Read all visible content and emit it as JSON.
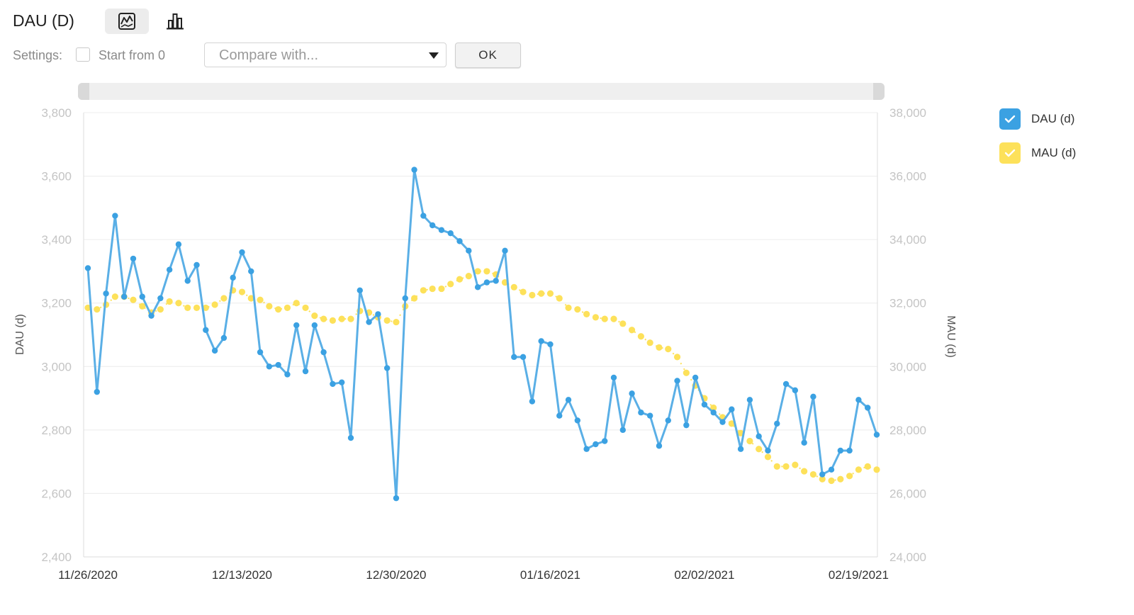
{
  "header": {
    "title": "DAU (D)",
    "line_view_icon": "line-chart-icon",
    "bar_view_icon": "bar-chart-icon"
  },
  "settings": {
    "label": "Settings:",
    "start_from_zero_label": "Start from 0",
    "start_from_zero_checked": false,
    "compare_placeholder": "Compare with...",
    "ok_label": "OK"
  },
  "colors": {
    "dau": "#5aafe6",
    "dau_point": "#3ba1e2",
    "mau": "#fde15a",
    "legend_dau": "#3ba1e2",
    "legend_mau": "#fde15a",
    "grid": "#ececec",
    "tick": "#c4c4c4"
  },
  "legend": [
    {
      "label": "DAU (d)",
      "checked": true
    },
    {
      "label": "MAU (d)",
      "checked": true
    }
  ],
  "chart_data": {
    "type": "line",
    "xlabel": "",
    "ylabel": "DAU (d)",
    "y2label": "MAU (d)",
    "ylim": [
      2400,
      3800
    ],
    "y2lim": [
      24000,
      38000
    ],
    "yticks": [
      "2,400",
      "2,600",
      "2,800",
      "3,000",
      "3,200",
      "3,400",
      "3,600",
      "3,800"
    ],
    "y2ticks": [
      "24,000",
      "26,000",
      "28,000",
      "30,000",
      "32,000",
      "34,000",
      "36,000",
      "38,000"
    ],
    "xtick_labels": [
      "11/26/2020",
      "12/13/2020",
      "12/30/2020",
      "01/16/2021",
      "02/02/2021",
      "02/19/2021"
    ],
    "xtick_index": [
      0,
      17,
      34,
      51,
      68,
      85
    ],
    "grid": true,
    "legend_position": "right",
    "series": [
      {
        "name": "DAU (d)",
        "axis": "left",
        "values": [
          3310,
          2920,
          3230,
          3475,
          3220,
          3340,
          3220,
          3160,
          3215,
          3305,
          3385,
          3270,
          3320,
          3115,
          3050,
          3090,
          3280,
          3360,
          3300,
          3045,
          3000,
          3005,
          2975,
          3130,
          2985,
          3130,
          3045,
          2945,
          2950,
          2775,
          3240,
          3140,
          3165,
          2995,
          2585,
          3215,
          3620,
          3475,
          3445,
          3430,
          3420,
          3395,
          3365,
          3250,
          3265,
          3270,
          3365,
          3030,
          3030,
          2890,
          3080,
          3070,
          2845,
          2895,
          2830,
          2740,
          2755,
          2765,
          2965,
          2800,
          2915,
          2855,
          2845,
          2750,
          2830,
          2955,
          2815,
          2965,
          2880,
          2855,
          2825,
          2865,
          2740,
          2895,
          2780,
          2735,
          2820,
          2945,
          2925,
          2760,
          2905,
          2660,
          2675,
          2735,
          2735,
          2895,
          2870,
          2785
        ]
      },
      {
        "name": "MAU (d)",
        "axis": "right",
        "values": [
          31850,
          31800,
          31950,
          32200,
          32200,
          32100,
          31900,
          31700,
          31800,
          32050,
          32000,
          31850,
          31850,
          31850,
          31950,
          32150,
          32400,
          32350,
          32150,
          32100,
          31900,
          31800,
          31850,
          32000,
          31850,
          31600,
          31500,
          31450,
          31500,
          31500,
          31750,
          31700,
          31550,
          31450,
          31400,
          31900,
          32150,
          32400,
          32450,
          32450,
          32600,
          32750,
          32850,
          33000,
          33000,
          32900,
          32650,
          32500,
          32350,
          32250,
          32300,
          32300,
          32150,
          31850,
          31800,
          31650,
          31550,
          31500,
          31500,
          31350,
          31150,
          30950,
          30750,
          30600,
          30550,
          30300,
          29800,
          29400,
          29000,
          28700,
          28400,
          28200,
          27900,
          27650,
          27400,
          27150,
          26850,
          26850,
          26900,
          26700,
          26600,
          26450,
          26400,
          26450,
          26550,
          26750,
          26850,
          26750
        ]
      }
    ]
  }
}
